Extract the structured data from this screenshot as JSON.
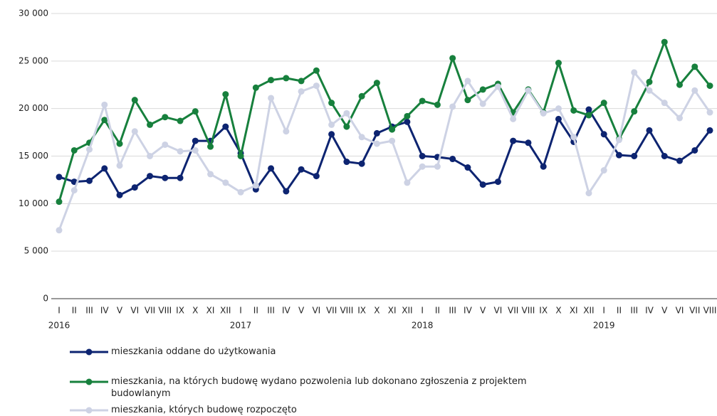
{
  "chart_data": {
    "type": "line",
    "categories": [
      "I",
      "II",
      "III",
      "IV",
      "V",
      "VI",
      "VII",
      "VIII",
      "IX",
      "X",
      "XI",
      "XII",
      "I",
      "II",
      "III",
      "IV",
      "V",
      "VI",
      "VII",
      "VIII",
      "IX",
      "X",
      "XI",
      "XII",
      "I",
      "II",
      "III",
      "IV",
      "V",
      "VI",
      "VII",
      "VIII",
      "IX",
      "X",
      "XI",
      "XII",
      "I",
      "II",
      "III",
      "IV",
      "V",
      "VI",
      "VII",
      "VIII"
    ],
    "years": [
      "2016",
      "2017",
      "2018",
      "2019"
    ],
    "series": [
      {
        "name": "mieszkania oddane do użytkowania",
        "color": "#0d2471",
        "values": [
          12800,
          12300,
          12400,
          13700,
          10900,
          11700,
          12900,
          12700,
          12700,
          16600,
          16600,
          18100,
          15300,
          11500,
          13700,
          11300,
          13600,
          12900,
          17300,
          14400,
          14200,
          17400,
          18100,
          18600,
          15000,
          14900,
          14700,
          13800,
          12000,
          12300,
          16600,
          16400,
          13900,
          18900,
          16500,
          19900,
          17300,
          15100,
          15000,
          17700,
          15000,
          14500,
          15600,
          17700
        ]
      },
      {
        "name": "mieszkania, na których budowę wydano pozwolenia lub dokonano zgłoszenia z projektem budowlanym",
        "color": "#17803d",
        "values": [
          10200,
          15600,
          16400,
          18800,
          16300,
          20900,
          18300,
          19100,
          18700,
          19700,
          16000,
          21500,
          15000,
          22200,
          23000,
          23200,
          22900,
          24000,
          20600,
          18100,
          21300,
          22700,
          17800,
          19200,
          20800,
          20400,
          25300,
          20900,
          22000,
          22600,
          19600,
          22000,
          19600,
          24800,
          19800,
          19300,
          20600,
          16800,
          19700,
          22800,
          27000,
          22500,
          24400,
          22400
        ]
      },
      {
        "name": "mieszkania, których budowę rozpoczęto",
        "color": "#cdd2e4",
        "values": [
          7200,
          11400,
          15700,
          20400,
          14000,
          17600,
          15000,
          16200,
          15500,
          15600,
          13100,
          12200,
          11200,
          11900,
          21100,
          17600,
          21800,
          22400,
          18300,
          19500,
          17000,
          16300,
          16600,
          12200,
          13900,
          13900,
          20200,
          22900,
          20500,
          22300,
          18900,
          21900,
          19500,
          20000,
          17000,
          11100,
          13500,
          16700,
          23800,
          21900,
          20600,
          19000,
          21900,
          19600
        ]
      }
    ],
    "ylim": [
      0,
      30000
    ],
    "yticks": [
      0,
      {
        "value": 5000,
        "label": "5 000"
      },
      {
        "value": 10000,
        "label": "10 000"
      },
      {
        "value": 15000,
        "label": "15 000"
      },
      {
        "value": 20000,
        "label": "20 000"
      },
      {
        "value": 25000,
        "label": "25 000"
      },
      {
        "value": 30000,
        "label": "30 000"
      }
    ],
    "grid": true
  }
}
